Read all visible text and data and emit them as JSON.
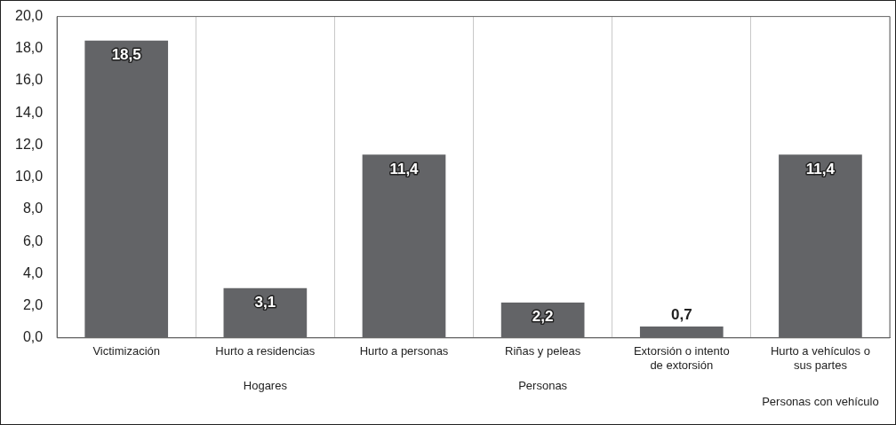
{
  "chart_data": {
    "type": "bar",
    "categories": [
      "Victimización",
      "Hurto a residencias",
      "Hurto a personas",
      "Riñas y peleas",
      "Extorsión o intento de extorsión",
      "Hurto a vehículos o sus partes"
    ],
    "values": [
      18.5,
      3.1,
      11.4,
      2.2,
      0.7,
      11.4
    ],
    "value_labels": [
      "18,5",
      "3,1",
      "11,4",
      "2,2",
      "0,7",
      "11,4"
    ],
    "color": "#636467",
    "ylim": [
      0,
      20
    ],
    "yticks": [
      {
        "value": 0,
        "label": "0,0"
      },
      {
        "value": 2,
        "label": "2,0"
      },
      {
        "value": 4,
        "label": "4,0"
      },
      {
        "value": 6,
        "label": "6,0"
      },
      {
        "value": 8,
        "label": "8,0"
      },
      {
        "value": 10,
        "label": "10,0"
      },
      {
        "value": 12,
        "label": "12,0"
      },
      {
        "value": 14,
        "label": "14,0"
      },
      {
        "value": 16,
        "label": "16,0"
      },
      {
        "value": 18,
        "label": "18,0"
      },
      {
        "value": 20,
        "label": "20,0"
      }
    ],
    "grid": "x",
    "legend": false,
    "annotations": [
      "Hogares",
      "Personas",
      "Personas con vehículo"
    ]
  }
}
